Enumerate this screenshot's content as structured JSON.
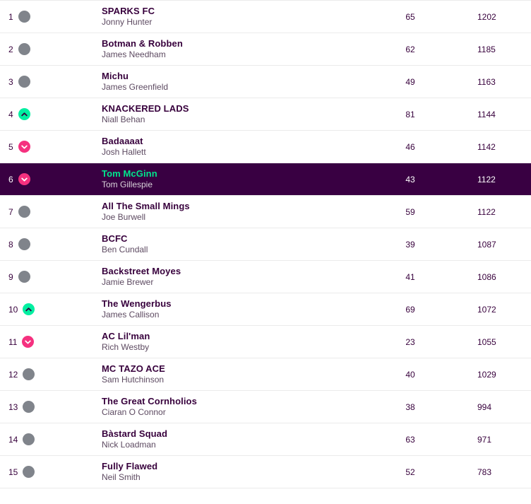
{
  "table": {
    "name": "league-standings",
    "colors": {
      "highlight_row_bg": "#390042",
      "primary_text": "#37003c",
      "manager_text": "#5d4a61",
      "highlight_team_text": "#00e58c",
      "highlight_secondary_text": "#d9d4da",
      "movement_same": "#80848b",
      "movement_up": "#02efa1",
      "movement_down": "#f5317f",
      "divider": "#ebebeb"
    }
  },
  "rows": [
    {
      "rank": "1",
      "movement": "same",
      "team": "SPARKS FC",
      "manager": "Jonny Hunter",
      "gw": "65",
      "total": "1202",
      "highlighted": false
    },
    {
      "rank": "2",
      "movement": "same",
      "team": "Botman & Robben",
      "manager": "James Needham",
      "gw": "62",
      "total": "1185",
      "highlighted": false
    },
    {
      "rank": "3",
      "movement": "same",
      "team": "Michu",
      "manager": "James Greenfield",
      "gw": "49",
      "total": "1163",
      "highlighted": false
    },
    {
      "rank": "4",
      "movement": "up",
      "team": "KNACKERED LADS",
      "manager": "Niall Behan",
      "gw": "81",
      "total": "1144",
      "highlighted": false
    },
    {
      "rank": "5",
      "movement": "down",
      "team": "Badaaaat",
      "manager": "Josh Hallett",
      "gw": "46",
      "total": "1142",
      "highlighted": false
    },
    {
      "rank": "6",
      "movement": "down",
      "team": "Tom McGinn",
      "manager": "Tom Gillespie",
      "gw": "43",
      "total": "1122",
      "highlighted": true
    },
    {
      "rank": "7",
      "movement": "same",
      "team": "All The Small Mings",
      "manager": "Joe Burwell",
      "gw": "59",
      "total": "1122",
      "highlighted": false
    },
    {
      "rank": "8",
      "movement": "same",
      "team": "BCFC",
      "manager": "Ben Cundall",
      "gw": "39",
      "total": "1087",
      "highlighted": false
    },
    {
      "rank": "9",
      "movement": "same",
      "team": "Backstreet Moyes",
      "manager": "Jamie Brewer",
      "gw": "41",
      "total": "1086",
      "highlighted": false
    },
    {
      "rank": "10",
      "movement": "up",
      "team": "The Wengerbus",
      "manager": "James Callison",
      "gw": "69",
      "total": "1072",
      "highlighted": false
    },
    {
      "rank": "11",
      "movement": "down",
      "team": "AC Lil'man",
      "manager": "Rich Westby",
      "gw": "23",
      "total": "1055",
      "highlighted": false
    },
    {
      "rank": "12",
      "movement": "same",
      "team": "MC TAZO ACE",
      "manager": "Sam Hutchinson",
      "gw": "40",
      "total": "1029",
      "highlighted": false
    },
    {
      "rank": "13",
      "movement": "same",
      "team": "The Great Cornholios",
      "manager": "Ciaran O Connor",
      "gw": "38",
      "total": "994",
      "highlighted": false
    },
    {
      "rank": "14",
      "movement": "same",
      "team": "Bàstard Squad",
      "manager": "Nick Loadman",
      "gw": "63",
      "total": "971",
      "highlighted": false
    },
    {
      "rank": "15",
      "movement": "same",
      "team": "Fully Flawed",
      "manager": "Neil Smith",
      "gw": "52",
      "total": "783",
      "highlighted": false
    }
  ]
}
